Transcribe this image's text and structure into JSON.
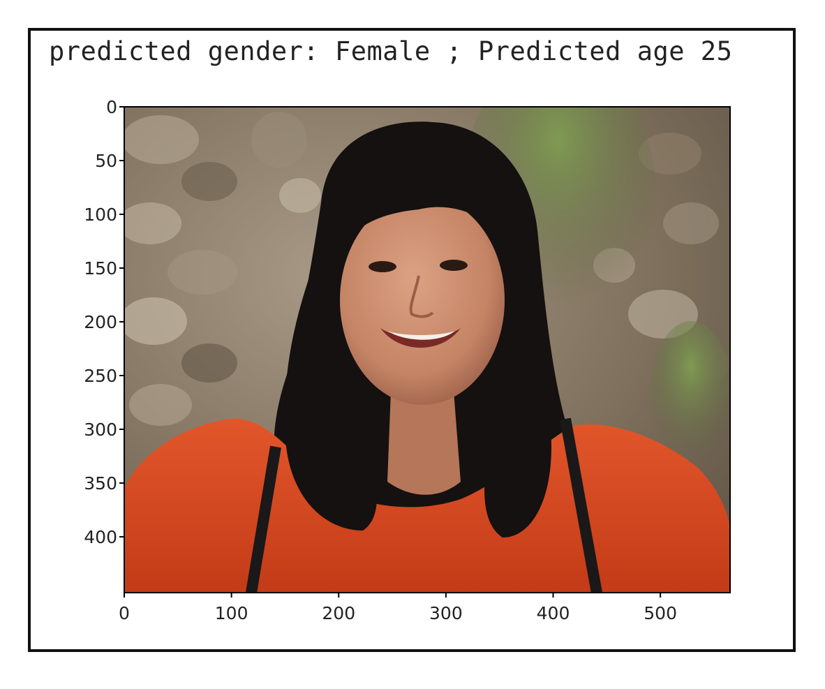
{
  "figure": {
    "title": "predicted gender: Female ; Predicted age 25"
  },
  "photo": {
    "subject": "smiling woman with long dark hair in orange-red top",
    "background": "stone wall with moss"
  },
  "chart_data": {
    "type": "image",
    "title": "predicted gender: Female ; Predicted age 25",
    "xlabel": "",
    "ylabel": "",
    "xlim": [
      0,
      565
    ],
    "ylim": [
      452,
      0
    ],
    "xticks": [
      0,
      100,
      200,
      300,
      400,
      500
    ],
    "yticks": [
      0,
      50,
      100,
      150,
      200,
      250,
      300,
      350,
      400
    ],
    "xticklabels": [
      "0",
      "100",
      "200",
      "300",
      "400",
      "500"
    ],
    "yticklabels": [
      "0",
      "50",
      "100",
      "150",
      "200",
      "250",
      "300",
      "350",
      "400"
    ],
    "grid": false
  },
  "colors": {
    "frame": "#111111",
    "axes": "#000000",
    "shirt": "#d9471f",
    "hair": "#141110",
    "skin": "#c98a6a",
    "wall": "#8a7a66",
    "moss": "#6f8a45"
  }
}
